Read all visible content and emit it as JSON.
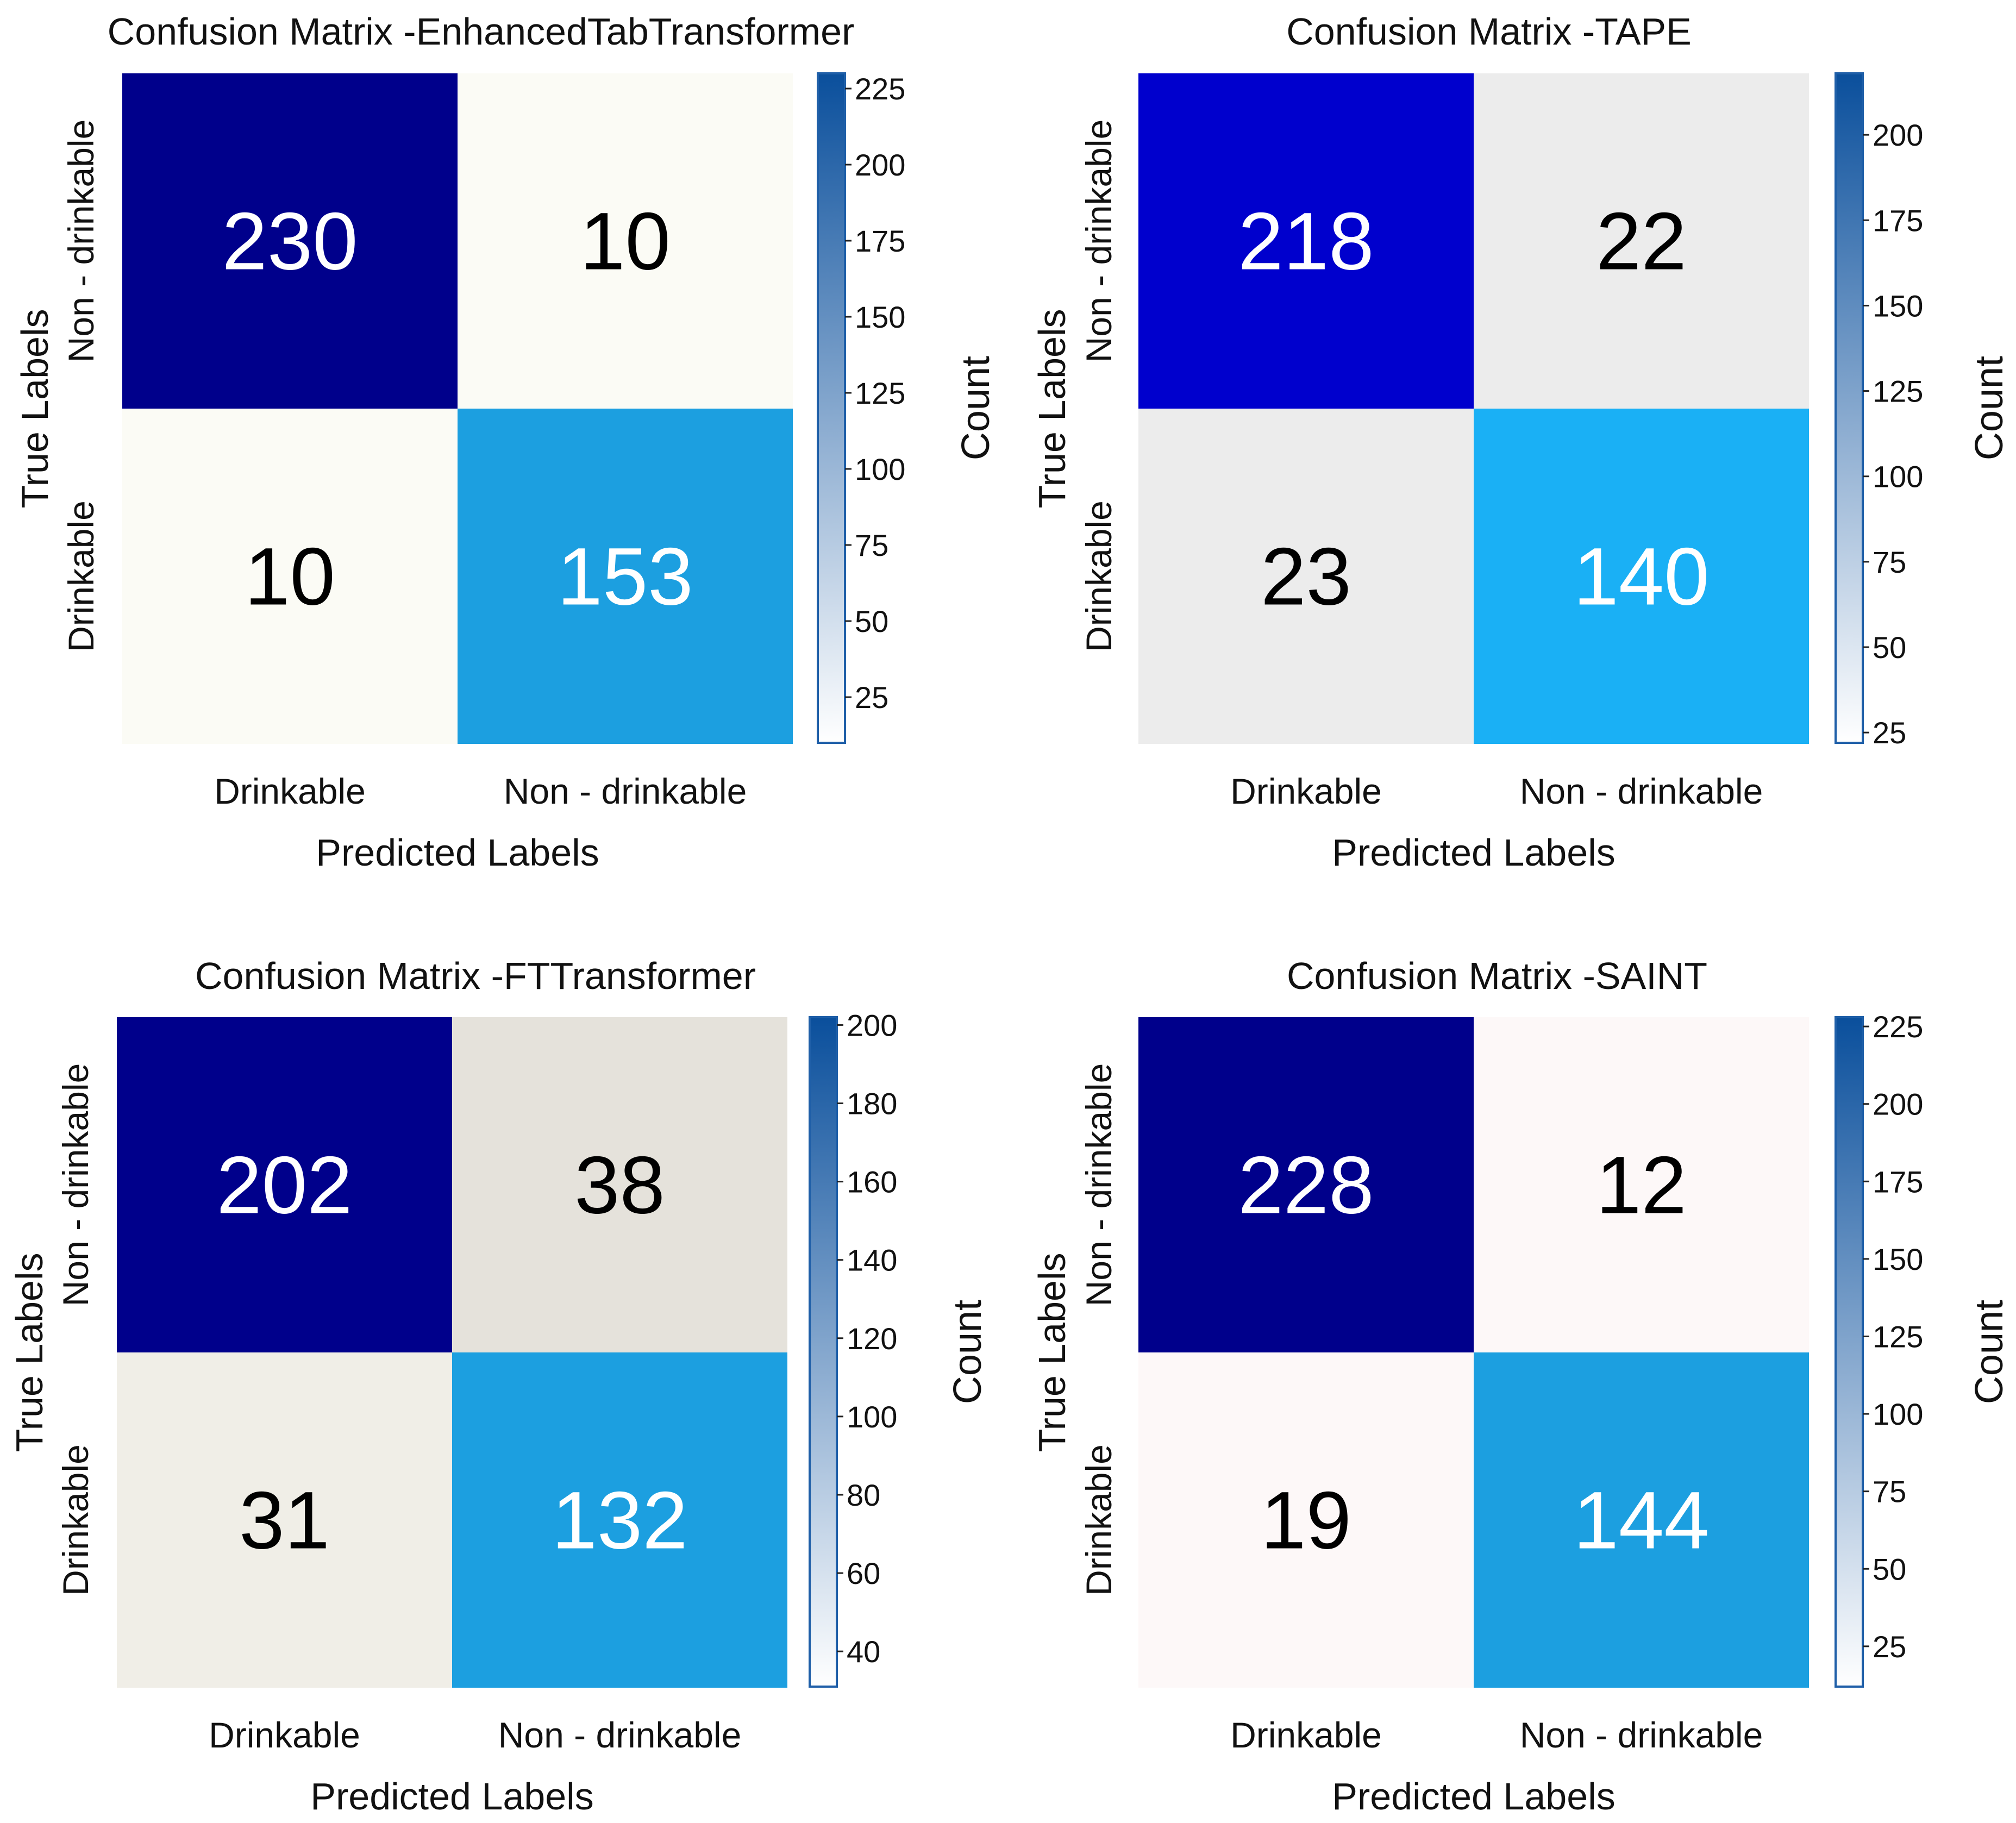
{
  "chart_data": [
    {
      "type": "heatmap",
      "title": "Confusion Matrix -EnhancedTabTransformer",
      "xlabel": "Predicted Labels",
      "ylabel": "True Labels",
      "x_categories": [
        "Drinkable",
        "Non - drinkable"
      ],
      "y_categories": [
        "Non - drinkable",
        "Drinkable"
      ],
      "values": [
        [
          230,
          10
        ],
        [
          10,
          153
        ]
      ],
      "cell_colors": [
        [
          "#00008b",
          "#fbfbf5"
        ],
        [
          "#fbfbf5",
          "#1c9fe0"
        ]
      ],
      "text_colors": [
        [
          "#ffffff",
          "#000000"
        ],
        [
          "#000000",
          "#ffffff"
        ]
      ],
      "colorbar": {
        "label": "Count",
        "range": [
          10,
          230
        ],
        "ticks": [
          "25",
          "50",
          "75",
          "100",
          "125",
          "150",
          "175",
          "200",
          "225"
        ],
        "tick_values": [
          25,
          50,
          75,
          100,
          125,
          150,
          175,
          200,
          225
        ]
      }
    },
    {
      "type": "heatmap",
      "title": "Confusion Matrix -TAPE",
      "xlabel": "Predicted Labels",
      "ylabel": "True Labels",
      "x_categories": [
        "Drinkable",
        "Non - drinkable"
      ],
      "y_categories": [
        "Non - drinkable",
        "Drinkable"
      ],
      "values": [
        [
          218,
          22
        ],
        [
          23,
          140
        ]
      ],
      "cell_colors": [
        [
          "#0000cd",
          "#ececec"
        ],
        [
          "#ececec",
          "#1ab0f5"
        ]
      ],
      "text_colors": [
        [
          "#ffffff",
          "#000000"
        ],
        [
          "#000000",
          "#ffffff"
        ]
      ],
      "colorbar": {
        "label": "Count",
        "range": [
          22,
          218
        ],
        "ticks": [
          "25",
          "50",
          "75",
          "100",
          "125",
          "150",
          "175",
          "200"
        ],
        "tick_values": [
          25,
          50,
          75,
          100,
          125,
          150,
          175,
          200
        ]
      }
    },
    {
      "type": "heatmap",
      "title": "Confusion Matrix -FTTransformer",
      "xlabel": "Predicted Labels",
      "ylabel": "True Labels",
      "x_categories": [
        "Drinkable",
        "Non - drinkable"
      ],
      "y_categories": [
        "Non - drinkable",
        "Drinkable"
      ],
      "values": [
        [
          202,
          38
        ],
        [
          31,
          132
        ]
      ],
      "cell_colors": [
        [
          "#00008b",
          "#e5e2db"
        ],
        [
          "#f0eee7",
          "#1c9fe0"
        ]
      ],
      "text_colors": [
        [
          "#ffffff",
          "#000000"
        ],
        [
          "#000000",
          "#ffffff"
        ]
      ],
      "colorbar": {
        "label": "Count",
        "range": [
          31,
          202
        ],
        "ticks": [
          "40",
          "60",
          "80",
          "100",
          "120",
          "140",
          "160",
          "180",
          "200"
        ],
        "tick_values": [
          40,
          60,
          80,
          100,
          120,
          140,
          160,
          180,
          200
        ]
      }
    },
    {
      "type": "heatmap",
      "title": "Confusion Matrix -SAINT",
      "xlabel": "Predicted Labels",
      "ylabel": "True Labels",
      "x_categories": [
        "Drinkable",
        "Non - drinkable"
      ],
      "y_categories": [
        "Non - drinkable",
        "Drinkable"
      ],
      "values": [
        [
          228,
          12
        ],
        [
          19,
          144
        ]
      ],
      "cell_colors": [
        [
          "#00008b",
          "#fdf8f8"
        ],
        [
          "#fdf8f8",
          "#1c9fe0"
        ]
      ],
      "text_colors": [
        [
          "#ffffff",
          "#000000"
        ],
        [
          "#000000",
          "#ffffff"
        ]
      ],
      "colorbar": {
        "label": "Count",
        "range": [
          12,
          228
        ],
        "ticks": [
          "25",
          "50",
          "75",
          "100",
          "125",
          "150",
          "175",
          "200",
          "225"
        ],
        "tick_values": [
          25,
          50,
          75,
          100,
          125,
          150,
          175,
          200,
          225
        ]
      }
    }
  ],
  "colorbar_colors": {
    "low": "#ffffff",
    "high": "#0a4f9c",
    "edge": "#1f5fa8"
  }
}
